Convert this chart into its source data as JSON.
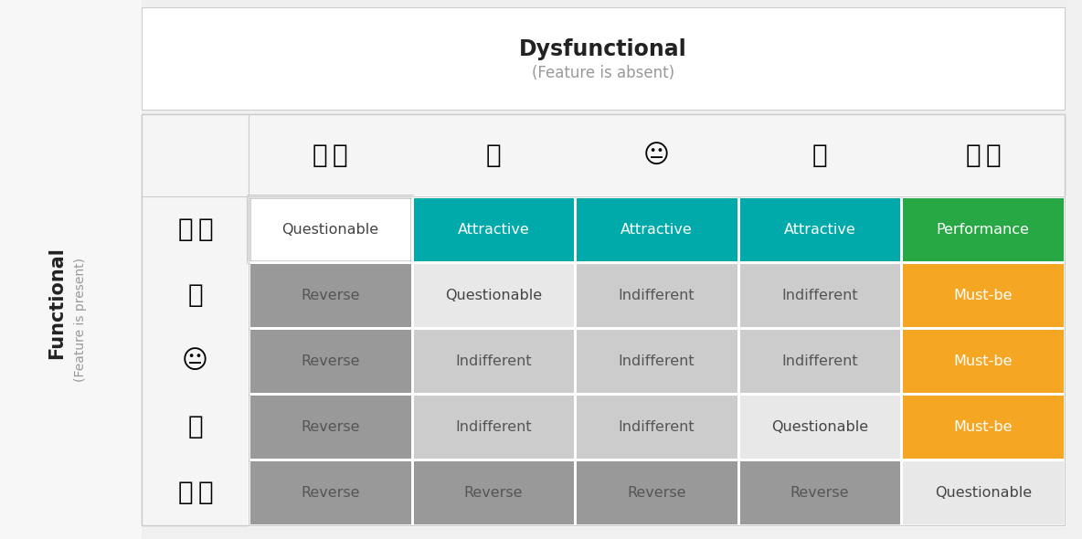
{
  "title": "Dysfunctional",
  "title_sub": "(Feature is absent)",
  "y_label": "Functional",
  "y_label_sub": "(Feature is present)",
  "outer_bg": "#f0f0f0",
  "top_panel_bg": "#f7f7f7",
  "left_panel_bg": "#f7f7f7",
  "table_bg": "#ffffff",
  "cells": [
    [
      "Questionable",
      "Attractive",
      "Attractive",
      "Attractive",
      "Performance"
    ],
    [
      "Reverse",
      "Questionable",
      "Indifferent",
      "Indifferent",
      "Must-be"
    ],
    [
      "Reverse",
      "Indifferent",
      "Indifferent",
      "Indifferent",
      "Must-be"
    ],
    [
      "Reverse",
      "Indifferent",
      "Indifferent",
      "Questionable",
      "Must-be"
    ],
    [
      "Reverse",
      "Reverse",
      "Reverse",
      "Reverse",
      "Questionable"
    ]
  ],
  "cell_colors": {
    "Questionable_top_left": "#ffffff",
    "Questionable_other": "#f0f0f0",
    "Attractive": "#00aaaa",
    "Performance": "#27a844",
    "Reverse": "#999999",
    "Indifferent": "#cccccc",
    "Must-be": "#f5a623"
  },
  "cell_text_colors": {
    "Questionable": "#444444",
    "Attractive": "#ffffff",
    "Performance": "#ffffff",
    "Reverse": "#555555",
    "Indifferent": "#555555",
    "Must-be": "#ffffff"
  },
  "border_color": "#cccccc",
  "top_left_border": "#333333",
  "title_color": "#222222",
  "subtitle_color": "#999999",
  "functional_color": "#222222",
  "functional_sub_color": "#999999"
}
